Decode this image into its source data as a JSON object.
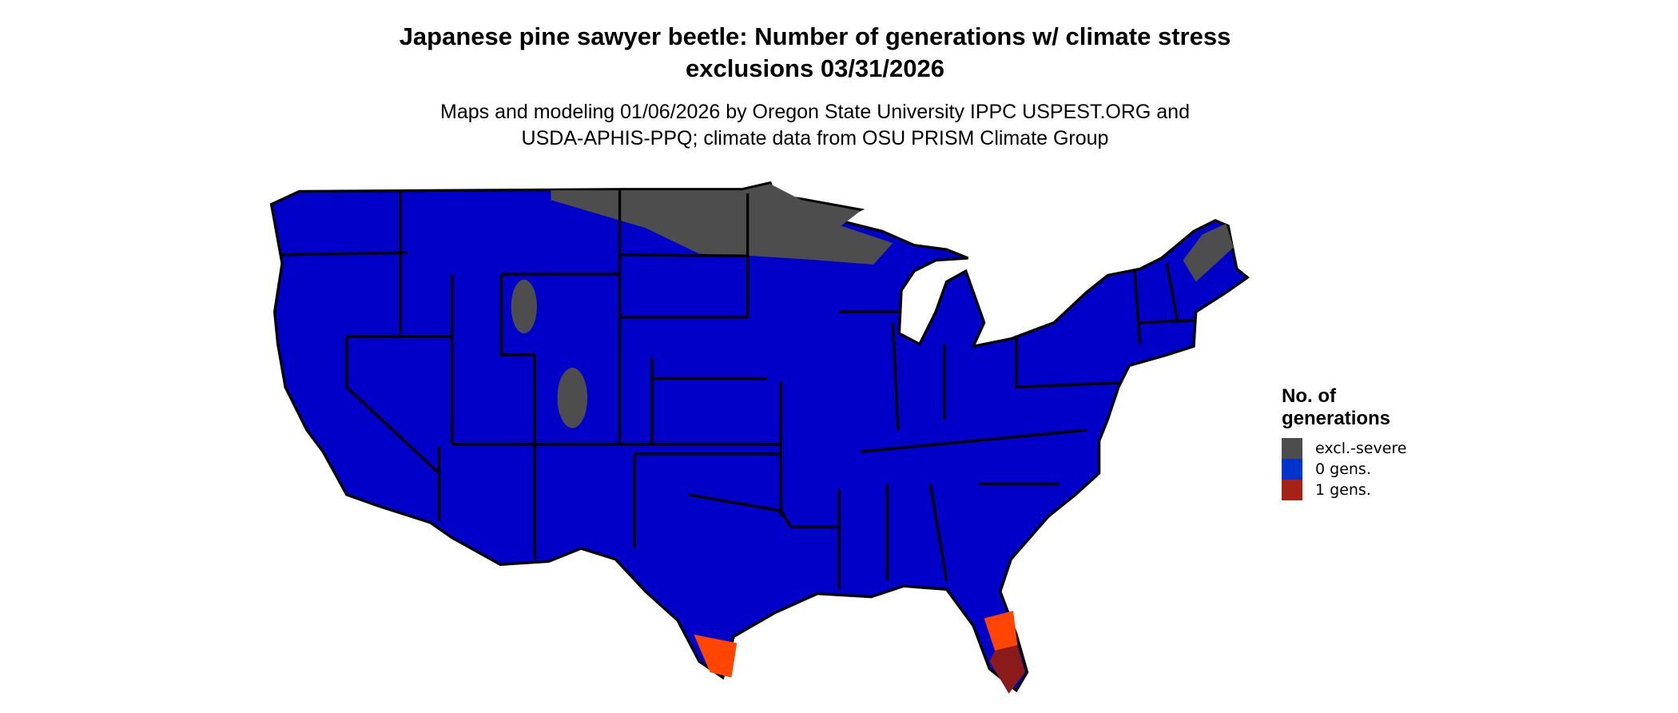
{
  "title": "Japanese pine sawyer beetle: Number of generations w/ climate stress exclusions 03/31/2026",
  "subtitle_line1": "Maps and modeling 01/06/2026 by Oregon State University IPPC USPEST.ORG and",
  "subtitle_line2": "USDA-APHIS-PPQ; climate data from OSU PRISM Climate Group",
  "legend": {
    "title": "No. of generations",
    "items": [
      {
        "label": "excl.-severe",
        "color": "#4d4d4d"
      },
      {
        "label": "0 gens.",
        "color": "#0033cc"
      },
      {
        "label": "1 gens.",
        "color": "#a62214"
      }
    ]
  },
  "map_colors": {
    "base": "#0000c8",
    "excluded": "#4d4d4d",
    "one_gen_light": "#ff4500",
    "one_gen_dark": "#8b1a1a",
    "borders": "#000000"
  }
}
